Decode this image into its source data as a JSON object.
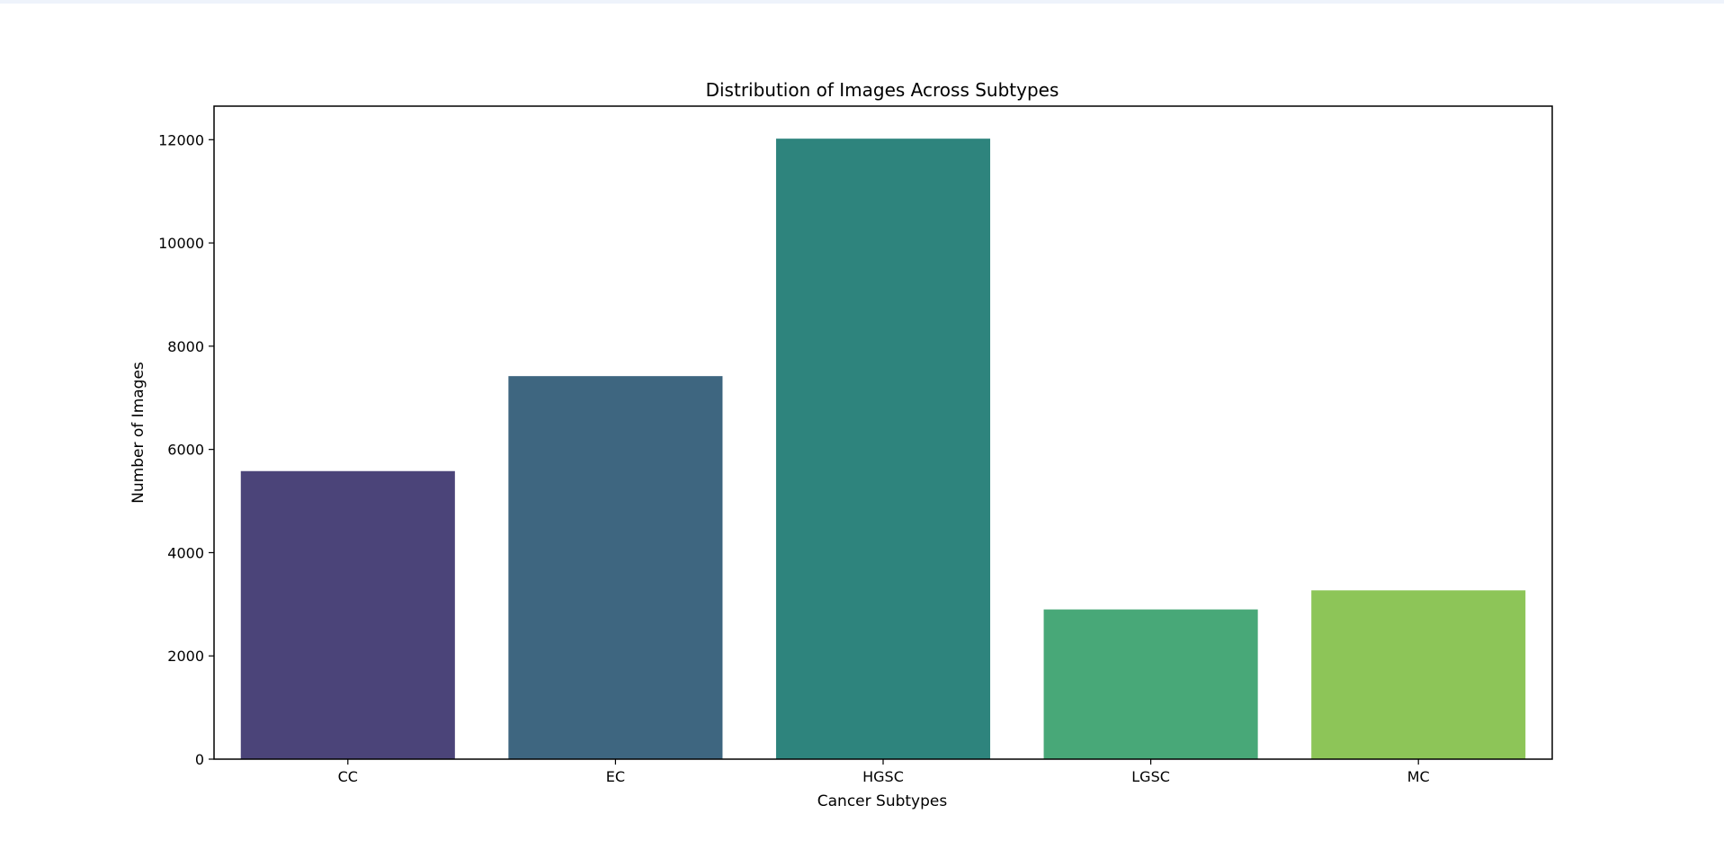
{
  "chart_data": {
    "type": "bar",
    "title": "Distribution of Images Across Subtypes",
    "xlabel": "Cancer Subtypes",
    "ylabel": "Number of Images",
    "categories": [
      "CC",
      "EC",
      "HGSC",
      "LGSC",
      "MC"
    ],
    "values": [
      5580,
      7420,
      12020,
      2900,
      3270
    ],
    "colors": [
      "#4b4479",
      "#3e6680",
      "#2e847d",
      "#48a878",
      "#8dc558"
    ],
    "ylim": [
      0,
      12650
    ],
    "yticks": [
      0,
      2000,
      4000,
      6000,
      8000,
      10000,
      12000
    ],
    "grid": false,
    "legend": "none"
  }
}
